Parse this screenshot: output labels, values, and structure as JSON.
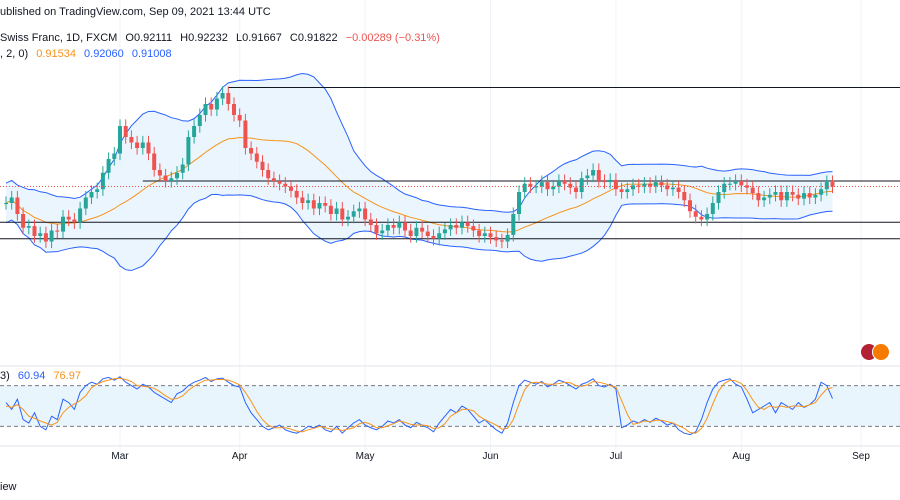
{
  "header": {
    "published": "ublished on TradingView.com, Sep 09, 2021 13:44 UTC",
    "symbol": "Swiss Franc, 1D, FXCM",
    "open": "O0.92111",
    "high": "H0.92232",
    "low": "L0.91667",
    "close": "C0.91822",
    "change": "−0.00289 (−0.31%)",
    "bb_prefix": ", 2, 0)",
    "bb_basis": "0.91534",
    "bb_upper": "0.92060",
    "bb_lower": "0.91008",
    "stoch_prefix": "3)",
    "stoch_k": "60.94",
    "stoch_d": "76.97"
  },
  "footer": {
    "text": "iew"
  },
  "colors": {
    "up": "#26a69a",
    "down": "#ef5350",
    "basis": "#f7931a",
    "band": "#2962ff",
    "band_fill": "#e3f2fd",
    "stoch_k": "#2962ff",
    "stoch_d": "#f7931a"
  },
  "chart_data": {
    "type": "candlestick",
    "x_ticks": [
      "Mar",
      "Apr",
      "May",
      "Jun",
      "Jul",
      "Aug",
      "Sep"
    ],
    "x_tick_bars": [
      20,
      41,
      63,
      85,
      107,
      129,
      150
    ],
    "ylim": [
      0.89,
      0.94
    ],
    "levels": [
      0.935,
      0.918,
      0.9105,
      0.9075
    ],
    "stoch_levels": [
      80,
      20
    ],
    "close": [
      0.914,
      0.915,
      0.912,
      0.9095,
      0.9098,
      0.908,
      0.9085,
      0.907,
      0.909,
      0.9088,
      0.9115,
      0.911,
      0.9105,
      0.913,
      0.915,
      0.916,
      0.9165,
      0.9195,
      0.922,
      0.923,
      0.928,
      0.926,
      0.925,
      0.924,
      0.925,
      0.923,
      0.92,
      0.919,
      0.918,
      0.9185,
      0.9195,
      0.921,
      0.926,
      0.928,
      0.93,
      0.932,
      0.931,
      0.933,
      0.934,
      0.932,
      0.93,
      0.929,
      0.924,
      0.923,
      0.9215,
      0.92,
      0.9185,
      0.918,
      0.9175,
      0.917,
      0.9162,
      0.915,
      0.914,
      0.9145,
      0.913,
      0.914,
      0.9135,
      0.912,
      0.913,
      0.911,
      0.9115,
      0.9125,
      0.913,
      0.911,
      0.91,
      0.9085,
      0.909,
      0.91,
      0.9095,
      0.9105,
      0.909,
      0.908,
      0.9095,
      0.9088,
      0.908,
      0.9075,
      0.9085,
      0.9092,
      0.91,
      0.9095,
      0.9105,
      0.9098,
      0.909,
      0.908,
      0.9085,
      0.9078,
      0.9072,
      0.907,
      0.9082,
      0.912,
      0.916,
      0.9175,
      0.917,
      0.917,
      0.9178,
      0.9165,
      0.917,
      0.918,
      0.9175,
      0.9168,
      0.916,
      0.9185,
      0.919,
      0.92,
      0.918,
      0.9178,
      0.9182,
      0.9165,
      0.916,
      0.9165,
      0.9172,
      0.917,
      0.9175,
      0.917,
      0.9178,
      0.9172,
      0.9165,
      0.9168,
      0.916,
      0.9145,
      0.9125,
      0.9115,
      0.911,
      0.912,
      0.914,
      0.916,
      0.9175,
      0.9175,
      0.918,
      0.9172,
      0.9168,
      0.9158,
      0.9145,
      0.915,
      0.9155,
      0.916,
      0.9145,
      0.916,
      0.9155,
      0.9148,
      0.9158,
      0.915,
      0.9155,
      0.9165,
      0.9178,
      0.917
    ],
    "stoch_k": [
      55,
      45,
      60,
      30,
      25,
      40,
      20,
      15,
      35,
      30,
      60,
      55,
      45,
      70,
      80,
      85,
      82,
      90,
      92,
      88,
      93,
      85,
      80,
      75,
      82,
      78,
      70,
      65,
      60,
      55,
      68,
      72,
      80,
      85,
      88,
      92,
      86,
      90,
      91,
      85,
      80,
      78,
      55,
      40,
      30,
      20,
      15,
      18,
      22,
      15,
      12,
      10,
      14,
      20,
      18,
      22,
      15,
      12,
      20,
      10,
      18,
      25,
      30,
      22,
      18,
      15,
      20,
      28,
      25,
      30,
      22,
      18,
      26,
      22,
      18,
      12,
      25,
      35,
      45,
      40,
      50,
      45,
      35,
      25,
      30,
      22,
      15,
      10,
      25,
      55,
      80,
      88,
      85,
      82,
      86,
      78,
      82,
      88,
      85,
      80,
      75,
      82,
      85,
      90,
      80,
      78,
      82,
      75,
      18,
      22,
      28,
      25,
      30,
      26,
      32,
      28,
      22,
      25,
      15,
      10,
      8,
      12,
      30,
      55,
      75,
      85,
      88,
      90,
      82,
      78,
      60,
      40,
      45,
      50,
      55,
      40,
      55,
      50,
      45,
      55,
      48,
      52,
      60,
      85,
      80,
      61
    ],
    "stoch_d": [
      50,
      48,
      52,
      45,
      35,
      32,
      28,
      25,
      22,
      26,
      40,
      48,
      53,
      58,
      65,
      77,
      82,
      86,
      88,
      90,
      91,
      89,
      86,
      80,
      79,
      78,
      76,
      71,
      65,
      60,
      61,
      65,
      73,
      79,
      84,
      88,
      88,
      89,
      89,
      88,
      85,
      81,
      70,
      57,
      42,
      30,
      22,
      18,
      18,
      18,
      16,
      13,
      12,
      15,
      17,
      20,
      18,
      16,
      16,
      14,
      16,
      18,
      24,
      26,
      23,
      18,
      18,
      21,
      24,
      28,
      26,
      23,
      22,
      22,
      21,
      17,
      18,
      24,
      35,
      40,
      45,
      45,
      43,
      35,
      30,
      26,
      22,
      16,
      17,
      30,
      53,
      74,
      84,
      85,
      84,
      82,
      82,
      83,
      85,
      84,
      80,
      79,
      81,
      86,
      85,
      83,
      80,
      78,
      58,
      38,
      23,
      25,
      28,
      27,
      29,
      29,
      27,
      25,
      21,
      17,
      11,
      10,
      17,
      32,
      53,
      72,
      83,
      88,
      87,
      83,
      73,
      59,
      48,
      45,
      50,
      48,
      50,
      48,
      50,
      50,
      49,
      52,
      55,
      66,
      75,
      77
    ]
  }
}
